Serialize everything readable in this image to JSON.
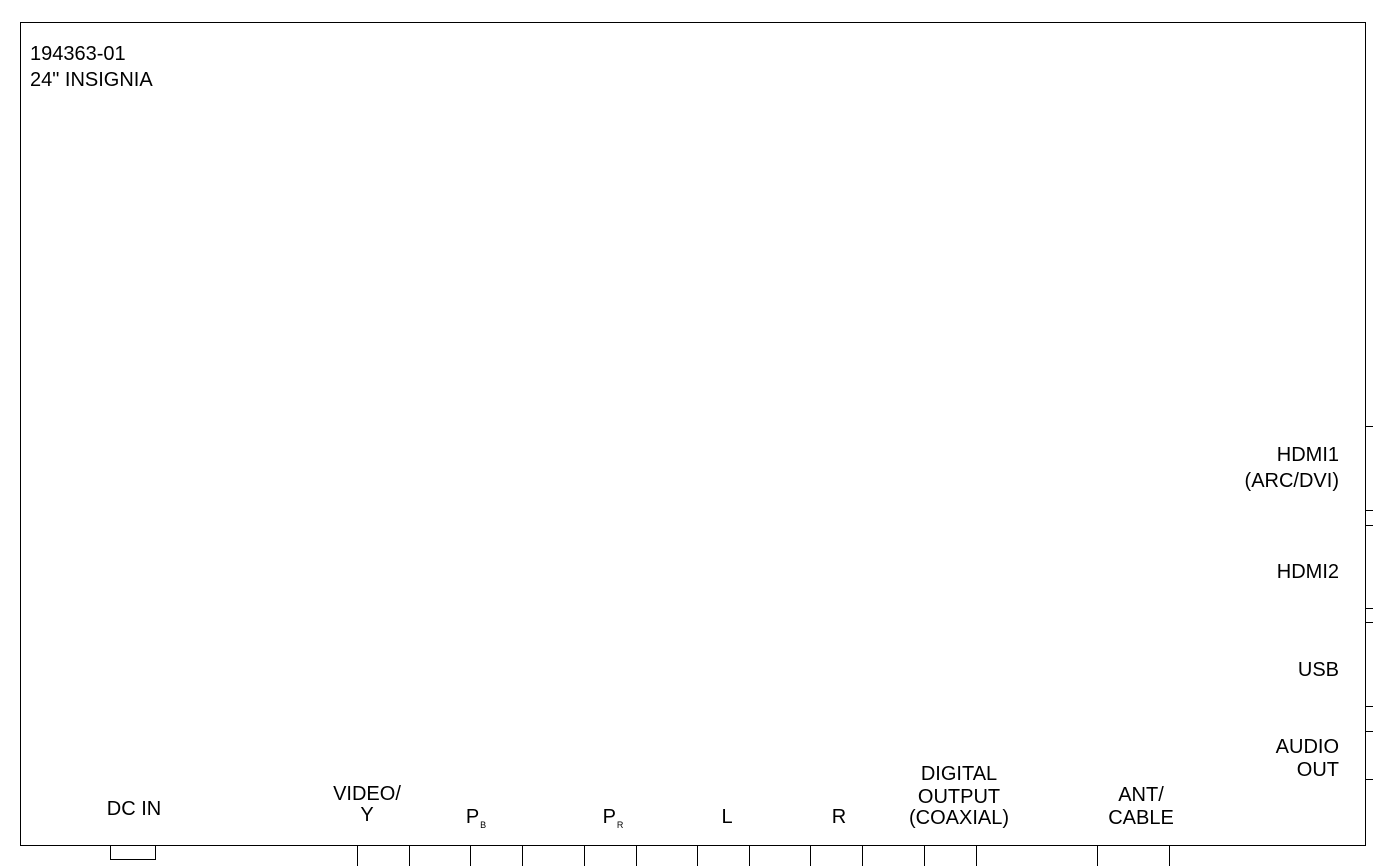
{
  "header": {
    "part_number": "194363-01",
    "model": "24\" INSIGNIA"
  },
  "bottom_ports": {
    "dc_in": "DC IN",
    "video_line1": "VIDEO/",
    "video_line2": "Y",
    "pb_main": "P",
    "pb_sub": "B",
    "pr_main": "P",
    "pr_sub": "R",
    "l": "L",
    "r": "R",
    "digital_line1": "DIGITAL",
    "digital_line2": "OUTPUT",
    "digital_line3": "(COAXIAL)",
    "ant_line1": "ANT/",
    "ant_line2": "CABLE"
  },
  "side_ports": {
    "hdmi1_line1": "HDMI1",
    "hdmi1_line2": "(ARC/DVI)",
    "hdmi2": "HDMI2",
    "usb": "USB",
    "audio_line1": "AUDIO",
    "audio_line2": "OUT"
  }
}
